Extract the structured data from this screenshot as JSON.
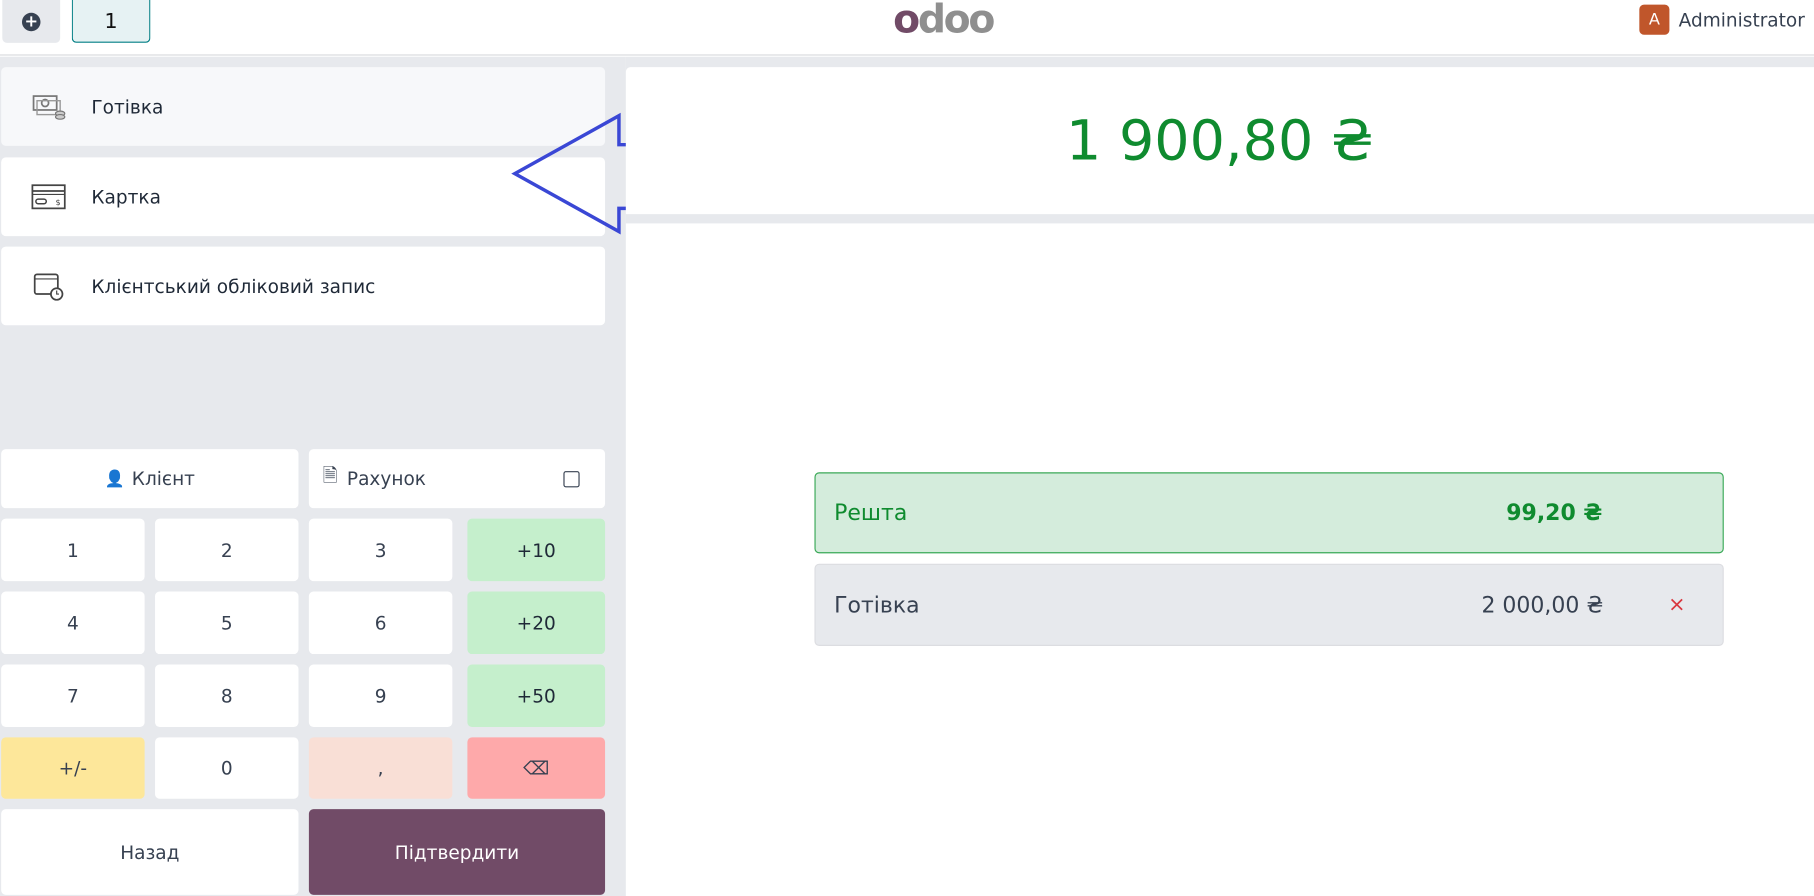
{
  "header": {
    "new_order_icon": "plus-circle-icon",
    "order_tab": "1",
    "logo": "odoo",
    "user": {
      "avatar_letter": "A",
      "name": "Administrator"
    }
  },
  "payment_methods": [
    {
      "label": "Готівка",
      "icon": "cash-icon",
      "selected": true
    },
    {
      "label": "Картка",
      "icon": "card-icon",
      "selected": false
    },
    {
      "label": "Клієнтський обліковий запис",
      "icon": "wallet-clock-icon",
      "selected": false
    }
  ],
  "actions": {
    "customer": "Клієнт",
    "invoice": "Рахунок",
    "invoice_checked": false
  },
  "numpad": {
    "keys": [
      "1",
      "2",
      "3",
      "+10",
      "4",
      "5",
      "6",
      "+20",
      "7",
      "8",
      "9",
      "+50",
      "+/-",
      "0",
      ",",
      "⌫"
    ],
    "back": "Назад",
    "confirm": "Підтвердити"
  },
  "total": "1 900,80 ₴",
  "summary": {
    "change_label": "Решта",
    "change_amount": "99,20 ₴",
    "lines": [
      {
        "method": "Готівка",
        "amount": "2 000,00 ₴"
      }
    ]
  },
  "colors": {
    "brand": "#714b67",
    "amount": "#0f8b2f",
    "annotation_arrow": "#3a47d5"
  }
}
